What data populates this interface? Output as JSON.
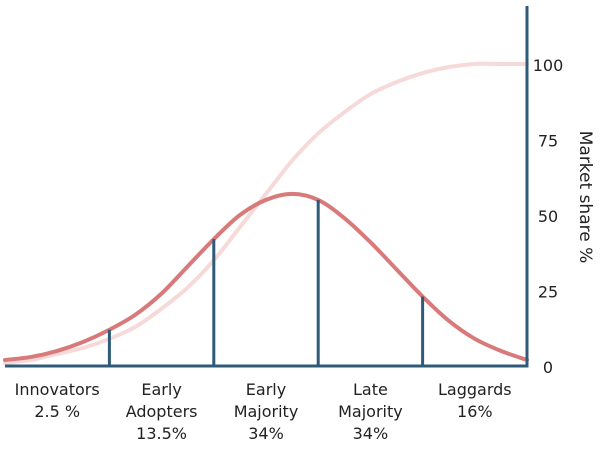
{
  "chart_data": {
    "type": "line",
    "title": "",
    "ylabel": "Market share %",
    "ylim": [
      0,
      120
    ],
    "yticks": [
      0,
      25,
      50,
      75,
      100
    ],
    "colors": {
      "bell": "#d97a7a",
      "cumulative": "#f6d9d9",
      "axis": "#2f5a78",
      "divider": "#2f5a78"
    },
    "series": [
      {
        "key": "adoption",
        "x": [
          0,
          5,
          10,
          15,
          20,
          25,
          30,
          35,
          40,
          45,
          50,
          55,
          60,
          65,
          70,
          75,
          80,
          85,
          90,
          95,
          100
        ],
        "values": [
          2,
          3,
          5,
          8,
          12,
          17,
          24,
          33,
          42,
          50,
          55,
          57,
          55,
          49,
          41,
          32,
          23,
          15,
          9,
          5,
          2
        ]
      },
      {
        "key": "cumulative",
        "x": [
          0,
          5,
          10,
          15,
          20,
          25,
          30,
          35,
          40,
          45,
          50,
          55,
          60,
          65,
          70,
          75,
          80,
          85,
          90,
          95,
          100
        ],
        "values": [
          1,
          2,
          4,
          6,
          9,
          13,
          19,
          26,
          35,
          46,
          57,
          68,
          77,
          84,
          90,
          94,
          97,
          99,
          100,
          100,
          100
        ]
      }
    ],
    "dividers": [
      20,
      40,
      60,
      80
    ],
    "segments": [
      {
        "lines": [
          "Innovators",
          "2.5 %"
        ]
      },
      {
        "lines": [
          "Early",
          "Adopters",
          "13.5%"
        ]
      },
      {
        "lines": [
          "Early",
          "Majority",
          "34%"
        ]
      },
      {
        "lines": [
          "Late",
          "Majority",
          "34%"
        ]
      },
      {
        "lines": [
          "Laggards",
          "16%"
        ]
      }
    ]
  }
}
